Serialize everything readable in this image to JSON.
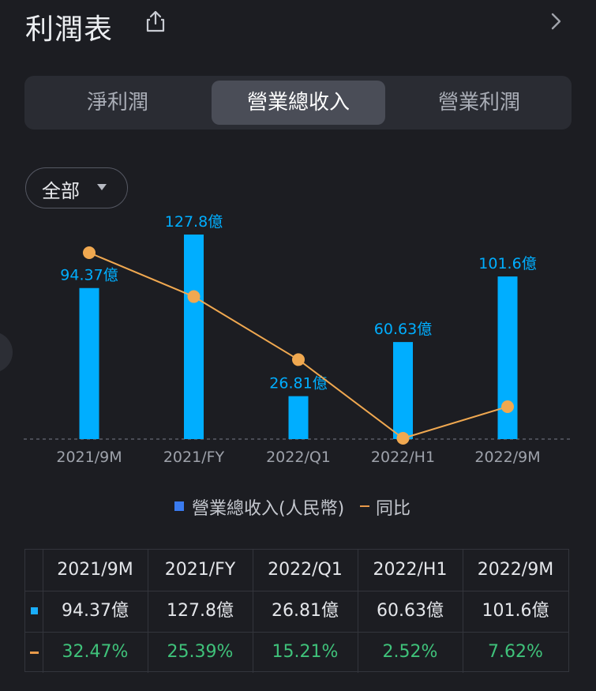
{
  "header": {
    "title": "利潤表"
  },
  "tabs": [
    {
      "label": "淨利潤",
      "active": false
    },
    {
      "label": "營業總收入",
      "active": true
    },
    {
      "label": "營業利潤",
      "active": false
    }
  ],
  "filter": {
    "label": "全部"
  },
  "colors": {
    "bar": "#00aeff",
    "line": "#f0a850",
    "positive": "#3fc27a",
    "legend_square": "#3a7bef"
  },
  "chart_data": {
    "type": "bar",
    "categories": [
      "2021/9M",
      "2021/FY",
      "2022/Q1",
      "2022/H1",
      "2022/9M"
    ],
    "series": [
      {
        "name": "營業總收入(人民幣)",
        "values": [
          94.37,
          127.8,
          26.81,
          60.63,
          101.6
        ],
        "labels": [
          "94.37億",
          "127.8億",
          "26.81億",
          "60.63億",
          "101.6億"
        ],
        "unit": "億"
      },
      {
        "name": "同比",
        "type": "line",
        "values": [
          32.47,
          25.39,
          15.21,
          2.52,
          7.62
        ]
      }
    ],
    "ylim": [
      0,
      127.8
    ],
    "yoy_ylim": [
      2.52,
      32.47
    ],
    "legend_position": "bottom"
  },
  "legend": {
    "revenue": "營業總收入(人民幣)",
    "yoy": "同比"
  },
  "table": {
    "headers": [
      "2021/9M",
      "2021/FY",
      "2022/Q1",
      "2022/H1",
      "2022/9M"
    ],
    "revenue": [
      "94.37億",
      "127.8億",
      "26.81億",
      "60.63億",
      "101.6億"
    ],
    "yoy": [
      "32.47%",
      "25.39%",
      "15.21%",
      "2.52%",
      "7.62%"
    ]
  }
}
